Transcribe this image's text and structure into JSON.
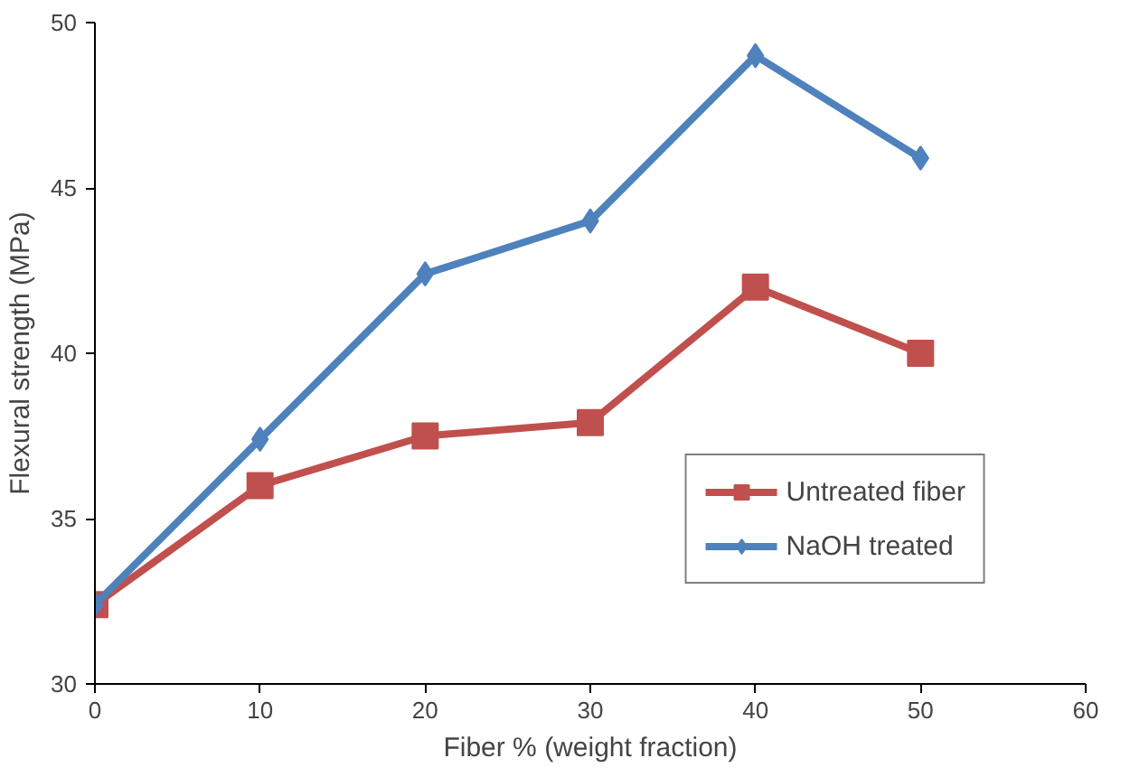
{
  "chart_data": {
    "type": "line",
    "xlabel": "Fiber % (weight fraction)",
    "ylabel": "Flexural strength (MPa)",
    "x": [
      0,
      10,
      20,
      30,
      40,
      50
    ],
    "series": [
      {
        "name": "Untreated fiber",
        "color": "#c0504d",
        "marker": "square",
        "values": [
          32.4,
          36.0,
          37.5,
          37.9,
          42.0,
          40.0
        ]
      },
      {
        "name": "NaOH treated",
        "color": "#4f81bd",
        "marker": "diamond",
        "values": [
          32.4,
          37.4,
          42.4,
          44.0,
          49.0,
          45.9
        ]
      }
    ],
    "xlim": [
      0,
      60
    ],
    "ylim": [
      30,
      50
    ],
    "xticks": [
      0,
      10,
      20,
      30,
      40,
      50,
      60
    ],
    "yticks": [
      30,
      35,
      40,
      45,
      50
    ],
    "grid": false,
    "legend": "bottom right"
  }
}
